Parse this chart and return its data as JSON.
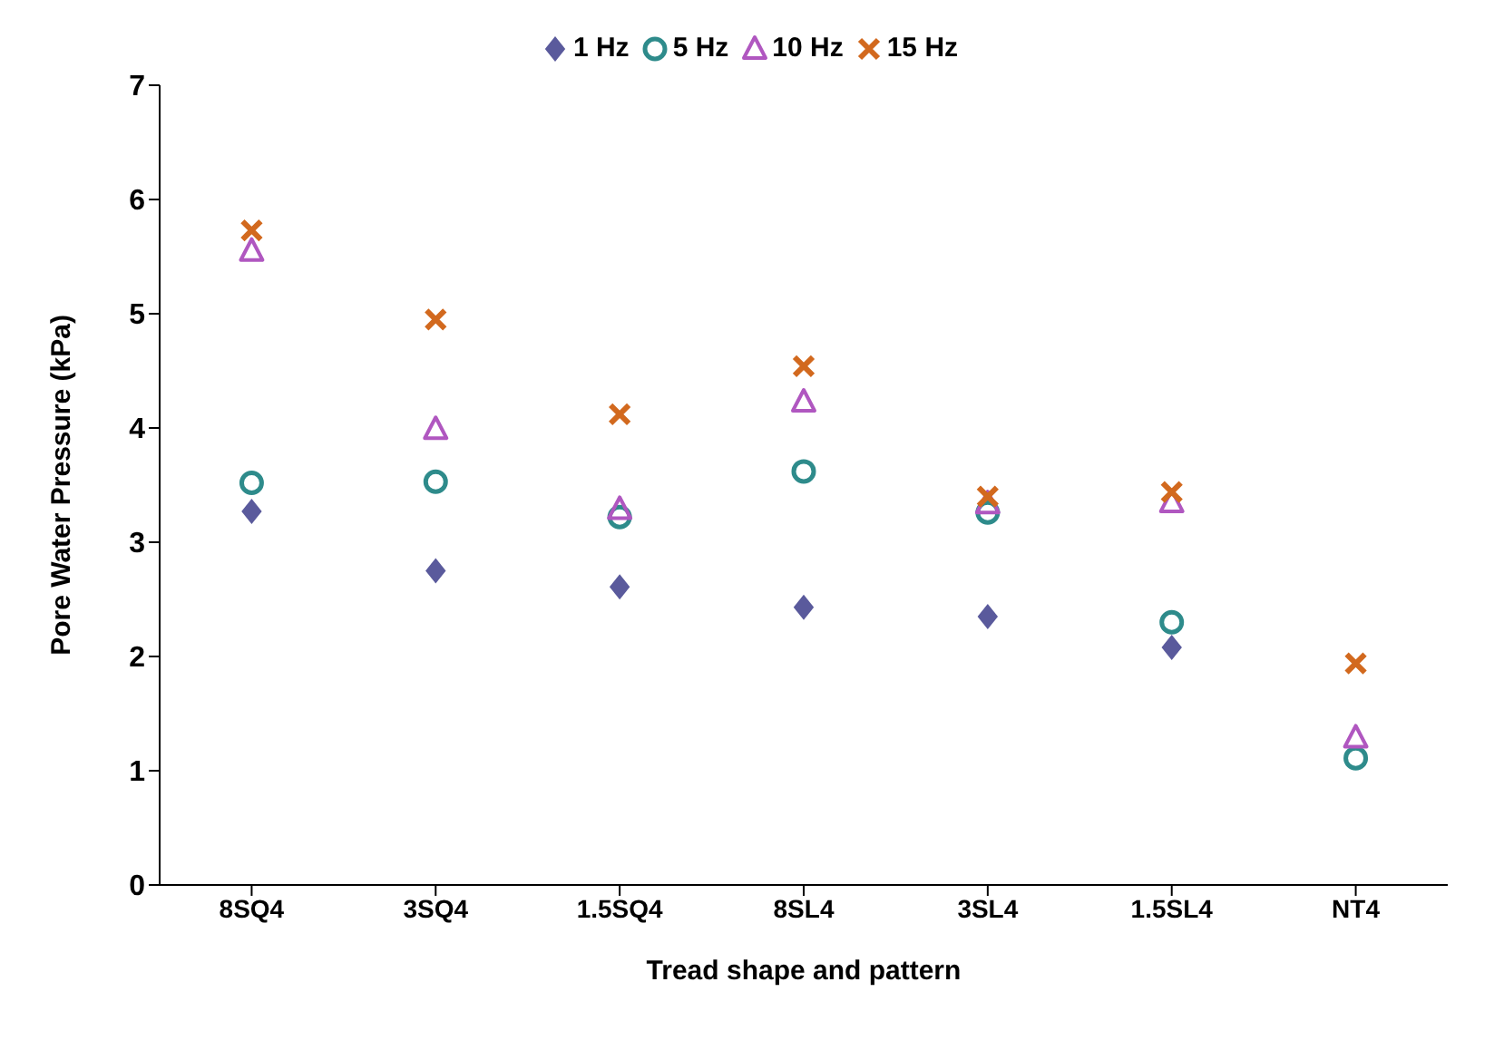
{
  "chart_data": {
    "type": "scatter",
    "xlabel": "Tread shape and pattern",
    "ylabel": "Pore Water Pressure (kPa)",
    "categories": [
      "8SQ4",
      "3SQ4",
      "1.5SQ4",
      "8SL4",
      "3SL4",
      "1.5SL4",
      "NT4"
    ],
    "ylim": [
      0,
      7
    ],
    "yticks": [
      0,
      1,
      2,
      3,
      4,
      5,
      6,
      7
    ],
    "grid": false,
    "legend": "top",
    "series": [
      {
        "name": "1 Hz",
        "color": "#5a5a9c",
        "marker": "diamond",
        "values": [
          3.27,
          2.75,
          2.61,
          2.43,
          2.35,
          2.08,
          null
        ]
      },
      {
        "name": "5 Hz",
        "color": "#2e8b8b",
        "marker": "circle",
        "values": [
          3.52,
          3.53,
          3.22,
          3.62,
          3.26,
          2.3,
          1.11
        ]
      },
      {
        "name": "10 Hz",
        "color": "#b057c0",
        "marker": "triangle",
        "values": [
          5.55,
          3.99,
          3.29,
          4.23,
          3.34,
          3.35,
          1.29
        ]
      },
      {
        "name": "15 Hz",
        "color": "#d2691e",
        "marker": "cross",
        "values": [
          5.73,
          4.95,
          4.12,
          4.54,
          3.4,
          3.44,
          1.94
        ]
      }
    ]
  }
}
